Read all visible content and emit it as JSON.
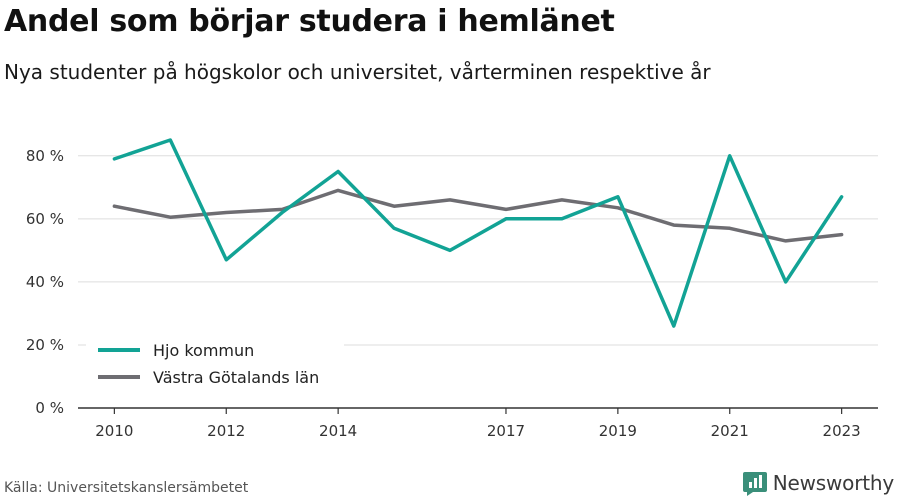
{
  "title": "Andel som börjar studera i hemlänet",
  "subtitle": "Nya studenter på högskolor och universitet, vårterminen respektive år",
  "source": "Källa: Universitetskanslersämbetet",
  "brand": {
    "name": "Newsworthy",
    "icon": "bar-chart-icon",
    "color": "#3a8f7a"
  },
  "chart_data": {
    "type": "line",
    "x": [
      2010,
      2011,
      2012,
      2013,
      2014,
      2015,
      2016,
      2017,
      2018,
      2019,
      2020,
      2021,
      2022,
      2023
    ],
    "x_ticks": [
      2010,
      2012,
      2014,
      2017,
      2019,
      2021,
      2023
    ],
    "y_ticks": [
      0,
      20,
      40,
      60,
      80
    ],
    "y_tick_labels": [
      "0 %",
      "20 %",
      "40 %",
      "60 %",
      "80 %"
    ],
    "ylim": [
      0,
      85
    ],
    "xlabel": "",
    "ylabel": "",
    "grid": true,
    "legend_position": "bottom-left",
    "series": [
      {
        "name": "Hjo kommun",
        "color": "#12a395",
        "values": [
          79,
          85,
          47,
          62,
          75,
          57,
          50,
          60,
          60,
          67,
          26,
          80,
          40,
          67
        ]
      },
      {
        "name": "Västra Götalands län",
        "color": "#6e6d72",
        "values": [
          64,
          60.5,
          62,
          63,
          69,
          64,
          66,
          63,
          66,
          63.5,
          58,
          57,
          53,
          55
        ]
      }
    ]
  }
}
